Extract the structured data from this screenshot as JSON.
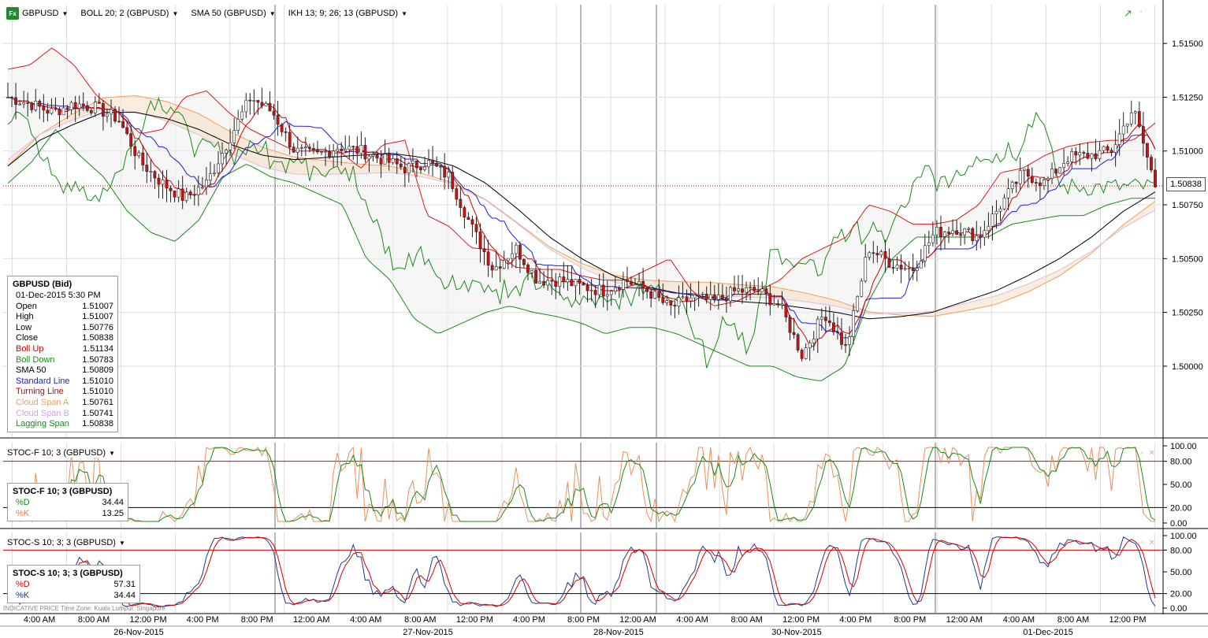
{
  "toolbar": {
    "symbol": "GBPUSD",
    "boll": "BOLL 20; 2 (GBPUSD)",
    "sma": "SMA 50 (GBPUSD)",
    "ikh": "IKH 13; 9; 26; 13 (GBPUSD)",
    "fx_badge": "Fx"
  },
  "main_legend": {
    "title": "GBPUSD (Bid)",
    "datetime": "01-Dec-2015 5:30 PM",
    "rows": [
      {
        "label": "Open",
        "value": "1.51007",
        "color": "#000000"
      },
      {
        "label": "High",
        "value": "1.51007",
        "color": "#000000"
      },
      {
        "label": "Low",
        "value": "1.50776",
        "color": "#000000"
      },
      {
        "label": "Close",
        "value": "1.50838",
        "color": "#000000"
      },
      {
        "label": "Boll Up",
        "value": "1.51134",
        "color": "#d40000"
      },
      {
        "label": "Boll Down",
        "value": "1.50783",
        "color": "#1a8a1a"
      },
      {
        "label": "SMA 50",
        "value": "1.50809",
        "color": "#000000"
      },
      {
        "label": "Standard Line",
        "value": "1.51010",
        "color": "#1f1fd0"
      },
      {
        "label": "Turning Line",
        "value": "1.51010",
        "color": "#d40000"
      },
      {
        "label": "Cloud Span A",
        "value": "1.50761",
        "color": "#f0a060"
      },
      {
        "label": "Cloud Span B",
        "value": "1.50741",
        "color": "#c8a8d0"
      },
      {
        "label": "Lagging Span",
        "value": "1.50838",
        "color": "#1a8a1a"
      }
    ]
  },
  "current_price": "1.50838",
  "stoch_fast": {
    "label": "STOC-F 10; 3 (GBPUSD)",
    "title": "STOC-F 10; 3 (GBPUSD)",
    "rows": [
      {
        "label": "%D",
        "value": "34.44",
        "color": "#1a8a1a"
      },
      {
        "label": "%K",
        "value": "13.25",
        "color": "#e08040"
      }
    ]
  },
  "stoch_slow": {
    "label": "STOC-S 10; 3; 3 (GBPUSD)",
    "title": "STOC-S 10; 3; 3 (GBPUSD)",
    "rows": [
      {
        "label": "%D",
        "value": "57.31",
        "color": "#d40000"
      },
      {
        "label": "%K",
        "value": "34.44",
        "color": "#1f3a8a"
      }
    ]
  },
  "footer_note": "INDICATIVE PRICE   Time Zone: Kuala Lumpur, Singapore",
  "chart_data": {
    "type": "candlestick",
    "symbol": "GBPUSD",
    "y_axis": {
      "ticks": [
        "1.51500",
        "1.51250",
        "1.51000",
        "1.50750",
        "1.50500",
        "1.50250",
        "1.50000"
      ],
      "values": [
        1.515,
        1.5125,
        1.51,
        1.5075,
        1.505,
        1.5025,
        1.5
      ],
      "ylim": [
        1.4967,
        1.5168
      ]
    },
    "stoch_axis": {
      "ticks": [
        "100.00",
        "80.00",
        "50.00",
        "20.00",
        "0.00"
      ],
      "values": [
        100,
        80,
        50,
        20,
        0
      ],
      "overbought": 80,
      "oversold": 20
    },
    "x_time_labels": [
      "4:00 AM",
      "8:00 AM",
      "12:00 PM",
      "4:00 PM",
      "8:00 PM",
      "12:00 AM",
      "4:00 AM",
      "8:00 AM",
      "12:00 PM",
      "4:00 PM",
      "8:00 PM",
      "12:00 AM",
      "4:00 AM",
      "8:00 AM",
      "12:00 PM",
      "4:00 PM",
      "8:00 PM",
      "12:00 AM",
      "4:00 AM",
      "8:00 AM",
      "12:00 PM"
    ],
    "x_date_labels": [
      "26-Nov-2015",
      "27-Nov-2015",
      "28-Nov-2015",
      "30-Nov-2015",
      "01-Dec-2015"
    ],
    "series_keypoints": {
      "close": [
        1.5125,
        1.5122,
        1.5118,
        1.5122,
        1.512,
        1.5115,
        1.5095,
        1.5085,
        1.5078,
        1.5085,
        1.5105,
        1.5125,
        1.5118,
        1.51,
        1.5098,
        1.5102,
        1.51,
        1.5096,
        1.5092,
        1.5095,
        1.5088,
        1.5065,
        1.5045,
        1.5055,
        1.504,
        1.504,
        1.5037,
        1.5035,
        1.504,
        1.5035,
        1.5027,
        1.5032,
        1.503,
        1.5035,
        1.5035,
        1.5028,
        1.5005,
        1.5025,
        1.5008,
        1.5055,
        1.5048,
        1.5045,
        1.5062,
        1.5064,
        1.506,
        1.5075,
        1.509,
        1.5085,
        1.5097,
        1.5098,
        1.51,
        1.512,
        1.5084
      ],
      "boll_up": [
        1.5138,
        1.514,
        1.5148,
        1.514,
        1.5126,
        1.5118,
        1.5108,
        1.511,
        1.5125,
        1.5128,
        1.5118,
        1.511,
        1.5105,
        1.51,
        1.51,
        1.51,
        1.5092,
        1.5103,
        1.5105,
        1.507,
        1.5065,
        1.5055,
        1.5054,
        1.5046,
        1.5045,
        1.5045,
        1.5042,
        1.504,
        1.504,
        1.5045,
        1.505,
        1.5035,
        1.5028,
        1.503,
        1.5035,
        1.504,
        1.505,
        1.5055,
        1.506,
        1.5075,
        1.5072,
        1.5066,
        1.5066,
        1.5068,
        1.5075,
        1.509,
        1.5092,
        1.5098,
        1.5102,
        1.5104,
        1.5105,
        1.5105,
        1.5113
      ],
      "boll_down": [
        1.5085,
        1.5095,
        1.511,
        1.5098,
        1.5088,
        1.5072,
        1.5062,
        1.5058,
        1.5068,
        1.5088,
        1.5094,
        1.5088,
        1.5085,
        1.508,
        1.5075,
        1.505,
        1.504,
        1.5022,
        1.5015,
        1.502,
        1.5025,
        1.5028,
        1.5025,
        1.5023,
        1.502,
        1.5015,
        1.5018,
        1.5018,
        1.5015,
        1.501,
        1.5005,
        1.5,
        1.5,
        1.4995,
        1.4993,
        1.5,
        1.503,
        1.505,
        1.506,
        1.506,
        1.506,
        1.506,
        1.5066,
        1.5068,
        1.507,
        1.507,
        1.5075,
        1.5078,
        1.5078
      ],
      "sma50": [
        1.5093,
        1.5105,
        1.5112,
        1.5118,
        1.5118,
        1.5115,
        1.511,
        1.5103,
        1.5098,
        1.5096,
        1.5097,
        1.5098,
        1.5099,
        1.5097,
        1.5093,
        1.5085,
        1.5073,
        1.506,
        1.505,
        1.5042,
        1.5037,
        1.5034,
        1.5032,
        1.503,
        1.5029,
        1.5027,
        1.5025,
        1.5022,
        1.5023,
        1.5025,
        1.503,
        1.5035,
        1.5042,
        1.505,
        1.506,
        1.5072,
        1.5081
      ]
    }
  }
}
